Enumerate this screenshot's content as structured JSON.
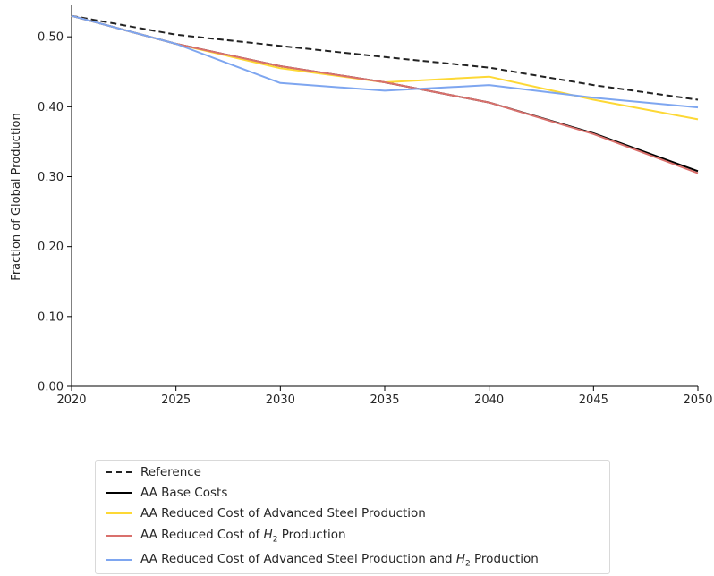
{
  "chart_data": {
    "type": "line",
    "title": "",
    "xlabel": "",
    "ylabel": "Fraction of Global Production",
    "x": [
      2020,
      2025,
      2030,
      2035,
      2040,
      2045,
      2050
    ],
    "xlim": [
      2020,
      2050
    ],
    "ylim": [
      0,
      0.545
    ],
    "yticks": [
      0.0,
      0.1,
      0.2,
      0.3,
      0.4,
      0.5
    ],
    "ytick_labels": [
      "0.00",
      "0.10",
      "0.20",
      "0.30",
      "0.40",
      "0.50"
    ],
    "xtick_labels": [
      "2020",
      "2025",
      "2030",
      "2035",
      "2040",
      "2045",
      "2050"
    ],
    "grid": false,
    "legend_position": "below",
    "series": [
      {
        "name": "Reference",
        "color": "#222222",
        "dash": "dashed",
        "values": [
          0.53,
          0.503,
          0.487,
          0.471,
          0.456,
          0.431,
          0.41
        ]
      },
      {
        "name": "AA Base Costs",
        "color": "#000000",
        "dash": "solid",
        "values": [
          0.53,
          0.49,
          0.458,
          0.435,
          0.406,
          0.362,
          0.308
        ]
      },
      {
        "name": "AA Reduced Cost of Advanced Steel Production",
        "color": "#fdd835",
        "dash": "solid",
        "values": [
          0.53,
          0.49,
          0.455,
          0.435,
          0.443,
          0.41,
          0.382
        ]
      },
      {
        "name": "AA Reduced Cost of H2 Production",
        "color": "#d9706c",
        "dash": "solid",
        "values": [
          0.53,
          0.49,
          0.458,
          0.435,
          0.406,
          0.361,
          0.305
        ]
      },
      {
        "name": "AA Reduced Cost of Advanced Steel Production and H2 Production",
        "color": "#7ea6f0",
        "dash": "solid",
        "values": [
          0.53,
          0.49,
          0.434,
          0.423,
          0.431,
          0.413,
          0.399
        ]
      }
    ]
  },
  "legend": {
    "items": [
      {
        "pre": "Reference",
        "sub": "",
        "post": ""
      },
      {
        "pre": "AA Base Costs",
        "sub": "",
        "post": ""
      },
      {
        "pre": "AA Reduced Cost of Advanced Steel Production",
        "sub": "",
        "post": ""
      },
      {
        "pre": "AA Reduced Cost of H",
        "sub": "2",
        "post": " Production"
      },
      {
        "pre": "AA Reduced Cost of Advanced Steel Production and H",
        "sub": "2",
        "post": " Production"
      }
    ]
  }
}
